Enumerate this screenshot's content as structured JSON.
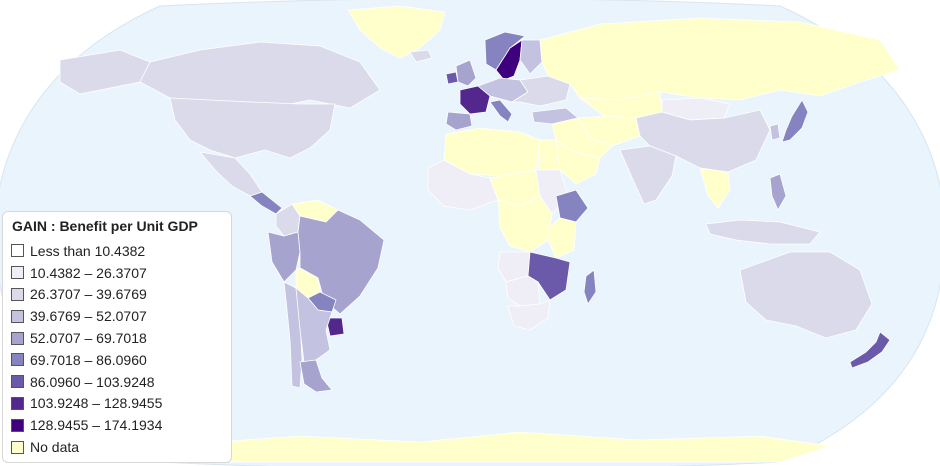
{
  "map": {
    "ocean_color": "#e9f4fc",
    "border_color": "#ffffff",
    "regions": [
      {
        "name": "greenland",
        "bin": 9
      },
      {
        "name": "canada",
        "bin": 2
      },
      {
        "name": "united-states",
        "bin": 2
      },
      {
        "name": "alaska",
        "bin": 2
      },
      {
        "name": "mexico",
        "bin": 2
      },
      {
        "name": "central-america",
        "bin": 5
      },
      {
        "name": "colombia",
        "bin": 2
      },
      {
        "name": "venezuela",
        "bin": 9
      },
      {
        "name": "peru",
        "bin": 4
      },
      {
        "name": "brazil",
        "bin": 4
      },
      {
        "name": "bolivia",
        "bin": 9
      },
      {
        "name": "paraguay",
        "bin": 5
      },
      {
        "name": "uruguay",
        "bin": 7
      },
      {
        "name": "chile",
        "bin": 3
      },
      {
        "name": "argentina",
        "bin": 3
      },
      {
        "name": "patagonia",
        "bin": 4
      },
      {
        "name": "iceland",
        "bin": 2
      },
      {
        "name": "sweden",
        "bin": 8
      },
      {
        "name": "norway",
        "bin": 5
      },
      {
        "name": "finland",
        "bin": 3
      },
      {
        "name": "uk",
        "bin": 4
      },
      {
        "name": "ireland",
        "bin": 6
      },
      {
        "name": "france",
        "bin": 7
      },
      {
        "name": "spain",
        "bin": 4
      },
      {
        "name": "central-europe",
        "bin": 3
      },
      {
        "name": "italy",
        "bin": 5
      },
      {
        "name": "eastern-europe",
        "bin": 2
      },
      {
        "name": "russia",
        "bin": 9
      },
      {
        "name": "turkey",
        "bin": 3
      },
      {
        "name": "middle-east",
        "bin": 9
      },
      {
        "name": "saudi-arabia",
        "bin": 9
      },
      {
        "name": "central-asia",
        "bin": 9
      },
      {
        "name": "kazakhstan",
        "bin": 9
      },
      {
        "name": "mongolia",
        "bin": 1
      },
      {
        "name": "china",
        "bin": 2
      },
      {
        "name": "india",
        "bin": 2
      },
      {
        "name": "myanmar-thailand",
        "bin": 9
      },
      {
        "name": "south-korea",
        "bin": 3
      },
      {
        "name": "japan",
        "bin": 5
      },
      {
        "name": "philippines",
        "bin": 4
      },
      {
        "name": "indonesia",
        "bin": 2
      },
      {
        "name": "north-africa",
        "bin": 9
      },
      {
        "name": "egypt",
        "bin": 9
      },
      {
        "name": "west-africa",
        "bin": 1
      },
      {
        "name": "niger-chad",
        "bin": 9
      },
      {
        "name": "sudan",
        "bin": 1
      },
      {
        "name": "ethiopia",
        "bin": 5
      },
      {
        "name": "drc",
        "bin": 9
      },
      {
        "name": "tanzania-kenya",
        "bin": 9
      },
      {
        "name": "angola",
        "bin": 1
      },
      {
        "name": "zambia-malawi",
        "bin": 6
      },
      {
        "name": "namibia-botswana",
        "bin": 1
      },
      {
        "name": "south-africa",
        "bin": 1
      },
      {
        "name": "madagascar",
        "bin": 5
      },
      {
        "name": "australia",
        "bin": 2
      },
      {
        "name": "new-zealand",
        "bin": 6
      },
      {
        "name": "antarctica",
        "bin": 9
      }
    ]
  },
  "legend": {
    "title": "GAIN : Benefit per Unit GDP",
    "items": [
      {
        "label": "Less than 10.4382",
        "color": "#ffffff"
      },
      {
        "label": "10.4382 – 26.3707",
        "color": "#efedf5"
      },
      {
        "label": "26.3707 – 39.6769",
        "color": "#dadaeb"
      },
      {
        "label": "39.6769 – 52.0707",
        "color": "#c3c2e0"
      },
      {
        "label": "52.0707 – 69.7018",
        "color": "#a6a3cf"
      },
      {
        "label": "69.7018 – 86.0960",
        "color": "#8683c1"
      },
      {
        "label": "86.0960 – 103.9248",
        "color": "#6b5aaa"
      },
      {
        "label": "103.9248 – 128.9455",
        "color": "#54278f"
      },
      {
        "label": "128.9455 – 174.1934",
        "color": "#3f007d"
      },
      {
        "label": "No data",
        "color": "#ffffcc"
      }
    ]
  }
}
